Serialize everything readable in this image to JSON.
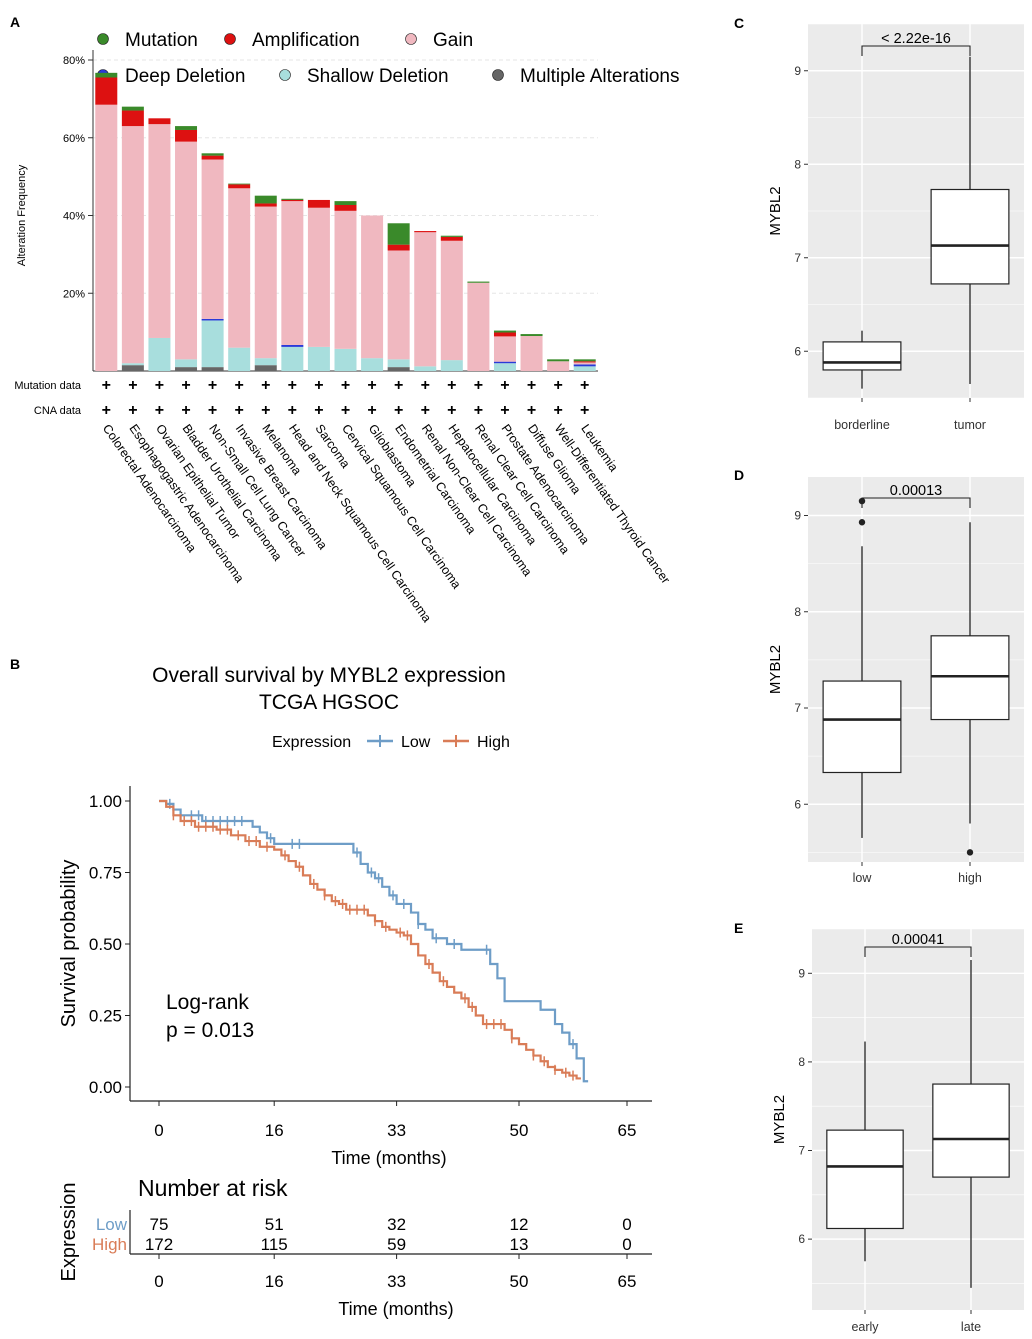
{
  "chart_data": [
    {
      "id": "A",
      "panel_label": "A",
      "type": "bar",
      "stacked": true,
      "ylabel": "Alteration Frequency",
      "ylim": [
        0,
        80
      ],
      "yticks": [
        20,
        40,
        60,
        80
      ],
      "ytick_labels": [
        "20%",
        "40%",
        "60%",
        "80%"
      ],
      "grid": true,
      "legend_position": "top",
      "legend": [
        {
          "key": "mutation",
          "label": "Mutation",
          "color": "#3a8a2a"
        },
        {
          "key": "amplification",
          "label": "Amplification",
          "color": "#dd1111"
        },
        {
          "key": "gain",
          "label": "Gain",
          "color": "#f0b8c0"
        },
        {
          "key": "deep_deletion",
          "label": "Deep Deletion",
          "color": "#2a3ad8"
        },
        {
          "key": "shallow_deletion",
          "label": "Shallow Deletion",
          "color": "#a8dedd"
        },
        {
          "key": "multiple",
          "label": "Multiple Alterations",
          "color": "#666666"
        }
      ],
      "categories": [
        "Colorectal Adenocarcinoma",
        "Esophagogastric Adenocarcinoma",
        "Ovarian Epithelial Tumor",
        "Bladder Urothelial Carcinoma",
        "Non-Small Cell Lung Cancer",
        "Invasive Breast Carcinoma",
        "Melanoma",
        "Head and Neck Squamous Cell Carcinoma",
        "Sarcoma",
        "Cervical Squamous Cell Carcinoma",
        "Glioblastoma",
        "Endometrial Carcinoma",
        "Renal Non-Clear Cell Carcinoma",
        "Hepatocellular Carcinoma",
        "Renal Clear Cell Carcinoma",
        "Prostate Adenocarcinoma",
        "Diffuse Glioma",
        "Well-Differentiated Thyroid Cancer",
        "Leukemia"
      ],
      "series": [
        {
          "key": "multiple",
          "values": [
            0,
            1.5,
            0,
            1,
            1,
            0,
            1.5,
            0,
            0,
            0,
            0,
            1,
            0,
            0,
            0,
            0,
            0,
            0,
            0
          ]
        },
        {
          "key": "shallow_deletion",
          "values": [
            0,
            0.5,
            8.5,
            2,
            12,
            6,
            1.8,
            6.2,
            6.2,
            5.7,
            3.3,
            2,
            1.2,
            2.8,
            0,
            2,
            0,
            0,
            1.2
          ]
        },
        {
          "key": "deep_deletion",
          "values": [
            0,
            0,
            0,
            0,
            0.4,
            0,
            0,
            0.5,
            0,
            0,
            0,
            0,
            0,
            0,
            0,
            0.4,
            0,
            0,
            0.5
          ]
        },
        {
          "key": "gain",
          "values": [
            68.5,
            61,
            55,
            56,
            41,
            41,
            39,
            37,
            35.8,
            35.5,
            36.7,
            28,
            34.5,
            30.7,
            22.7,
            6.5,
            9,
            2.5,
            0.5
          ]
        },
        {
          "key": "amplification",
          "values": [
            7,
            4,
            1.5,
            3,
            1,
            1,
            0.8,
            0.3,
            2,
            1.5,
            0,
            1.5,
            0.3,
            1,
            0,
            1,
            0,
            0,
            0.3
          ]
        },
        {
          "key": "mutation",
          "values": [
            1.2,
            1,
            0,
            1,
            0.6,
            0.2,
            2,
            0.3,
            0,
            1,
            0,
            5.5,
            0,
            0.3,
            0.3,
            0.5,
            0.5,
            0.5,
            0.5
          ]
        }
      ],
      "row_labels": [
        "Mutation data",
        "CNA data"
      ],
      "row_marker": "+"
    },
    {
      "id": "B",
      "panel_label": "B",
      "type": "line",
      "subtype": "kaplan-meier",
      "title": "Overall survival by MYBL2 expression",
      "subtitle": "TCGA HGSOC",
      "xlabel": "Time (months)",
      "ylabel": "Survival probability",
      "xlim": [
        0,
        65
      ],
      "ylim": [
        0,
        1
      ],
      "xticks": [
        0,
        16,
        33,
        50,
        65
      ],
      "yticks": [
        0,
        0.25,
        0.5,
        0.75,
        1
      ],
      "ytick_labels": [
        "0.00",
        "0.25",
        "0.50",
        "0.75",
        "1.00"
      ],
      "legend_title": "Expression",
      "legend_position": "top",
      "annotation": [
        "Log-rank",
        "p = 0.013"
      ],
      "series": [
        {
          "name": "Low",
          "color": "#6e9dc7",
          "steps": [
            [
              0,
              1
            ],
            [
              1,
              0.99
            ],
            [
              2,
              0.97
            ],
            [
              3,
              0.95
            ],
            [
              6,
              0.93
            ],
            [
              12,
              0.93
            ],
            [
              13,
              0.91
            ],
            [
              14,
              0.89
            ],
            [
              15,
              0.87
            ],
            [
              16,
              0.85
            ],
            [
              18,
              0.85
            ],
            [
              20,
              0.85
            ],
            [
              26,
              0.85
            ],
            [
              27,
              0.82
            ],
            [
              28,
              0.78
            ],
            [
              29,
              0.75
            ],
            [
              30,
              0.73
            ],
            [
              31,
              0.7
            ],
            [
              32,
              0.67
            ],
            [
              33,
              0.64
            ],
            [
              35,
              0.61
            ],
            [
              36,
              0.57
            ],
            [
              37,
              0.55
            ],
            [
              38,
              0.52
            ],
            [
              40,
              0.5
            ],
            [
              42,
              0.48
            ],
            [
              43,
              0.48
            ],
            [
              44,
              0.48
            ],
            [
              45,
              0.48
            ],
            [
              46,
              0.43
            ],
            [
              47,
              0.38
            ],
            [
              48,
              0.3
            ],
            [
              52,
              0.3
            ],
            [
              53,
              0.27
            ],
            [
              55,
              0.22
            ],
            [
              56,
              0.19
            ],
            [
              57,
              0.15
            ],
            [
              58,
              0.1
            ],
            [
              59,
              0.02
            ]
          ],
          "censor": [
            1.5,
            3,
            4.5,
            5.5,
            6.5,
            7.5,
            8.5,
            9.5,
            10.5,
            11.5,
            15.5,
            18.5,
            19.5,
            27.5,
            29.5,
            30.5,
            32.5,
            34,
            36,
            38.5,
            41,
            45.5,
            57.5
          ]
        },
        {
          "name": "High",
          "color": "#d97c57",
          "steps": [
            [
              0,
              1
            ],
            [
              1,
              0.98
            ],
            [
              2,
              0.95
            ],
            [
              3,
              0.93
            ],
            [
              5,
              0.91
            ],
            [
              8,
              0.9
            ],
            [
              10,
              0.88
            ],
            [
              12,
              0.86
            ],
            [
              14,
              0.84
            ],
            [
              16,
              0.83
            ],
            [
              17,
              0.81
            ],
            [
              18,
              0.79
            ],
            [
              19,
              0.77
            ],
            [
              20,
              0.74
            ],
            [
              21,
              0.71
            ],
            [
              22,
              0.69
            ],
            [
              23,
              0.67
            ],
            [
              24,
              0.65
            ],
            [
              25,
              0.64
            ],
            [
              26,
              0.62
            ],
            [
              28,
              0.62
            ],
            [
              29,
              0.6
            ],
            [
              30,
              0.58
            ],
            [
              31,
              0.56
            ],
            [
              32,
              0.55
            ],
            [
              33,
              0.54
            ],
            [
              34,
              0.53
            ],
            [
              35,
              0.5
            ],
            [
              36,
              0.46
            ],
            [
              37,
              0.43
            ],
            [
              38,
              0.4
            ],
            [
              39,
              0.37
            ],
            [
              40,
              0.35
            ],
            [
              41,
              0.33
            ],
            [
              42,
              0.31
            ],
            [
              43,
              0.28
            ],
            [
              44,
              0.25
            ],
            [
              45,
              0.22
            ],
            [
              46,
              0.22
            ],
            [
              47,
              0.22
            ],
            [
              48,
              0.2
            ],
            [
              49,
              0.17
            ],
            [
              50,
              0.15
            ],
            [
              51,
              0.13
            ],
            [
              52,
              0.11
            ],
            [
              53,
              0.09
            ],
            [
              54,
              0.07
            ],
            [
              55,
              0.06
            ],
            [
              56,
              0.05
            ],
            [
              57,
              0.04
            ],
            [
              58,
              0.03
            ]
          ],
          "censor": [
            2,
            3.5,
            4.5,
            5.5,
            6.5,
            7.5,
            8.5,
            9.5,
            11,
            12.5,
            13.5,
            15,
            17.5,
            19.5,
            21.5,
            23,
            24.5,
            25.5,
            26.5,
            27.5,
            28.5,
            30,
            31.5,
            33.5,
            34.5,
            37.5,
            39.5,
            42.5,
            43.5,
            45.5,
            46.5,
            47.5,
            49,
            52,
            53.5,
            55,
            56.5,
            57.5
          ]
        }
      ]
    },
    {
      "id": "B-risk",
      "type": "table",
      "title": "Number at risk",
      "ylabel": "Expression",
      "xlabel": "Time (months)",
      "xticks": [
        0,
        16,
        33,
        50,
        65
      ],
      "rows": [
        {
          "name": "Low",
          "color": "#6e9dc7",
          "values": [
            75,
            51,
            32,
            12,
            0
          ]
        },
        {
          "name": "High",
          "color": "#d97c57",
          "values": [
            172,
            115,
            59,
            13,
            0
          ]
        }
      ]
    },
    {
      "id": "C",
      "panel_label": "C",
      "type": "boxplot",
      "ylabel": "MYBL2",
      "ylim": [
        5.5,
        9.5
      ],
      "yticks": [
        6,
        7,
        8,
        9
      ],
      "comparison": "< 2.22e-16",
      "boxes": [
        {
          "label": "borderline",
          "whisker_low": 5.6,
          "q1": 5.8,
          "median": 5.88,
          "q3": 6.1,
          "whisker_high": 6.22,
          "outliers": []
        },
        {
          "label": "tumor",
          "whisker_low": 5.65,
          "q1": 6.72,
          "median": 7.13,
          "q3": 7.73,
          "whisker_high": 9.15,
          "outliers": []
        }
      ]
    },
    {
      "id": "D",
      "panel_label": "D",
      "type": "boxplot",
      "ylabel": "MYBL2",
      "ylim": [
        5.4,
        9.4
      ],
      "yticks": [
        6,
        7,
        8,
        9
      ],
      "comparison": "0.00013",
      "boxes": [
        {
          "label": "low",
          "whisker_low": 5.65,
          "q1": 6.33,
          "median": 6.88,
          "q3": 7.28,
          "whisker_high": 8.68,
          "outliers": [
            8.93,
            9.15
          ]
        },
        {
          "label": "high",
          "whisker_low": 5.8,
          "q1": 6.88,
          "median": 7.33,
          "q3": 7.75,
          "whisker_high": 8.93,
          "outliers": [
            5.5
          ]
        }
      ]
    },
    {
      "id": "E",
      "panel_label": "E",
      "type": "boxplot",
      "ylabel": "MYBL2",
      "ylim": [
        5.2,
        9.5
      ],
      "yticks": [
        6,
        7,
        8,
        9
      ],
      "comparison": "0.00041",
      "boxes": [
        {
          "label": "early",
          "whisker_low": 5.75,
          "q1": 6.12,
          "median": 6.82,
          "q3": 7.23,
          "whisker_high": 8.23,
          "outliers": []
        },
        {
          "label": "late",
          "whisker_low": 5.45,
          "q1": 6.7,
          "median": 7.13,
          "q3": 7.75,
          "whisker_high": 9.15,
          "outliers": []
        }
      ]
    }
  ]
}
